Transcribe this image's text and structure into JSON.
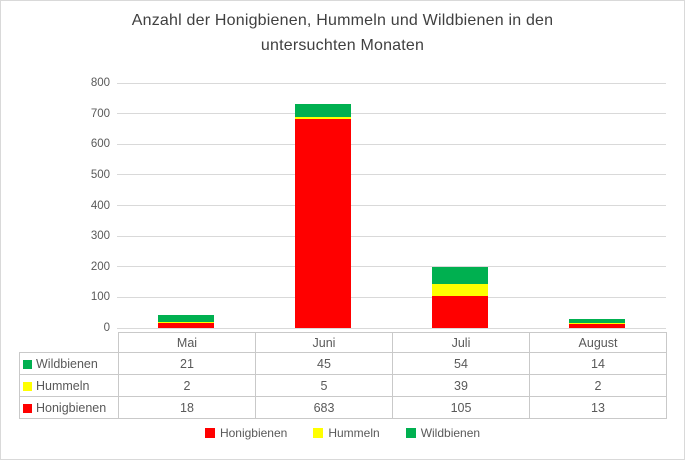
{
  "chart_data": {
    "type": "bar",
    "stacked": true,
    "title": "Anzahl der Honigbienen, Hummeln und Wildbienen in den untersuchten Monaten",
    "xlabel": "",
    "ylabel": "",
    "categories": [
      "Mai",
      "Juni",
      "Juli",
      "August"
    ],
    "series": [
      {
        "name": "Honigbienen",
        "color": "#FF0000",
        "values": [
          18,
          683,
          105,
          13
        ]
      },
      {
        "name": "Hummeln",
        "color": "#FFFF00",
        "values": [
          2,
          5,
          39,
          2
        ]
      },
      {
        "name": "Wildbienen",
        "color": "#00B050",
        "values": [
          21,
          45,
          54,
          14
        ]
      }
    ],
    "ylim": [
      0,
      800
    ],
    "yticks": [
      0,
      100,
      200,
      300,
      400,
      500,
      600,
      700,
      800
    ],
    "grid": true,
    "gridline_color": "#D9D9D9",
    "legend_position": "bottom",
    "legend_order": [
      "Honigbienen",
      "Hummeln",
      "Wildbienen"
    ],
    "data_table": {
      "shown": true,
      "row_order": [
        "Wildbienen",
        "Hummeln",
        "Honigbienen"
      ],
      "column_headers": [
        "Mai",
        "Juni",
        "Juli",
        "August"
      ],
      "rows": [
        {
          "label": "Wildbienen",
          "values": [
            21,
            45,
            54,
            14
          ]
        },
        {
          "label": "Hummeln",
          "values": [
            2,
            5,
            39,
            2
          ]
        },
        {
          "label": "Honigbienen",
          "values": [
            18,
            683,
            105,
            13
          ]
        }
      ]
    },
    "text_color": "#595959",
    "title_color": "#404040"
  }
}
